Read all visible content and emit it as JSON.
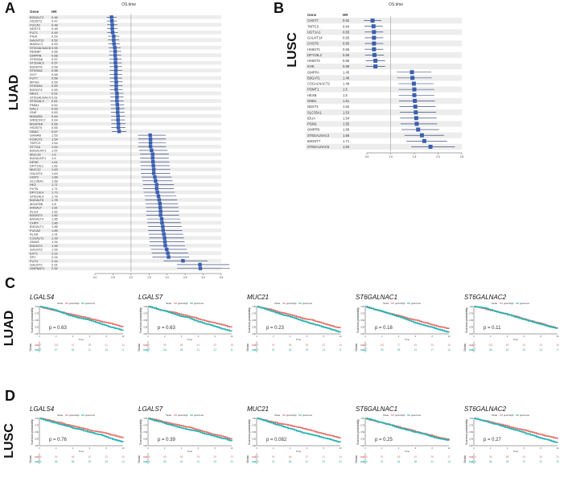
{
  "panels": {
    "A": {
      "letter": "A",
      "cohort": "LUAD"
    },
    "B": {
      "letter": "B",
      "cohort": "LUSC"
    },
    "C": {
      "letter": "C",
      "cohort": "LUAD"
    },
    "D": {
      "letter": "D",
      "cohort": "LUSC"
    }
  },
  "forest_common": {
    "title": "OS.time",
    "gene_header": "Gene",
    "hr_header": "HR"
  },
  "chart_data": [
    {
      "id": "forest-luad",
      "type": "forest",
      "title": "OS.time",
      "genes": [
        "B3GALT2",
        "HS3ST2",
        "FUCA1",
        "NDST3",
        "FUT1",
        "PIGK",
        "GALNT11",
        "MAN1C1",
        "ST6GALNAC6",
        "RENBP",
        "GMPPB",
        "ST8SIA6",
        "ST3GAL5",
        "B3GNT6",
        "ST6SIA1",
        "OGT",
        "FUT7",
        "MFNG",
        "ST8SIA1",
        "B3GNT4",
        "NEU1",
        "ST6GALNAC4",
        "ST3GAL3",
        "PMM1",
        "GAL1",
        "GNE",
        "MAN2B1",
        "WRSCR17",
        "MGAT4A",
        "HS3ST5",
        "GBA2",
        "GANAB",
        "FCRUT1",
        "TMTC3",
        "ST7GA",
        "B3GALNT1",
        "MUC16",
        "B4GALNT1",
        "HPSE",
        "DPY19L1",
        "MUC12",
        "GALNT4",
        "UGP2",
        "SLC35A1",
        "HK2",
        "FKTN",
        "DPY19L4",
        "ST6GAL4",
        "B4GALT6",
        "MGAT5B",
        "A4GALT",
        "ALG3",
        "B3GNT3",
        "B4GALT4",
        "CHPF",
        "B4GALT1",
        "FUCA2",
        "ALG6",
        "C1GALT1",
        "GMAS",
        "B3GNT3",
        "GALNT3",
        "EXT1",
        "SP1",
        "FUT4",
        "GALNT2",
        "GNPNAT1"
      ],
      "hr": [
        0.46,
        0.47,
        0.48,
        0.48,
        0.49,
        0.52,
        0.52,
        0.53,
        0.55,
        0.56,
        0.56,
        0.57,
        0.57,
        0.58,
        0.58,
        0.58,
        0.58,
        0.59,
        0.59,
        0.59,
        0.61,
        0.61,
        0.61,
        0.62,
        0.63,
        0.63,
        0.64,
        0.64,
        0.65,
        0.65,
        0.67,
        1.53,
        1.54,
        1.54,
        1.54,
        1.57,
        1.6,
        1.6,
        1.61,
        1.62,
        1.63,
        1.63,
        1.66,
        1.68,
        1.71,
        1.71,
        1.73,
        1.76,
        1.78,
        1.8,
        1.81,
        1.82,
        1.82,
        1.85,
        1.86,
        1.88,
        1.89,
        1.91,
        1.93,
        1.94,
        1.95,
        1.99,
        2.02,
        2.04,
        2.44,
        2.91,
        2.92
      ],
      "x_ticks": [
        "0.0",
        "0.5",
        "1.0",
        "1.5",
        "2.0",
        "2.5",
        "3.0",
        "3.5"
      ],
      "xlim": [
        0,
        3.5
      ],
      "ref_line": 1
    },
    {
      "id": "forest-lusc",
      "type": "forest",
      "title": "OS.time",
      "genes": [
        "CHST7",
        "TMTC3",
        "UGT1A1",
        "GALNT14",
        "CHST9",
        "HS6ST1",
        "DPY19L2",
        "HS6ST2",
        "KHK",
        "GMPPA",
        "B3GAT1",
        "CSGALNACT2",
        "POMT1",
        "HEXB",
        "GNB1",
        "NDST1",
        "SLC35A1",
        "IDUA",
        "PGM1",
        "GMPPB",
        "ST6GALNAC4",
        "B3GNT7",
        "ST6GALNAC5"
      ],
      "hr": [
        0.62,
        0.64,
        0.65,
        0.65,
        0.65,
        0.65,
        0.66,
        0.68,
        0.68,
        1.45,
        1.46,
        1.49,
        1.5,
        1.5,
        1.51,
        1.52,
        1.53,
        1.54,
        1.55,
        1.58,
        1.66,
        1.71,
        1.84
      ],
      "x_ticks": [
        "0.5",
        "1.0",
        "1.5",
        "2.0",
        "2.5"
      ],
      "xlim": [
        0.5,
        2.5
      ],
      "ref_line": 1
    },
    {
      "id": "km-luad",
      "type": "km-row",
      "ylabel": "Survival probability",
      "xlabel": "Time",
      "strata_label": "Strata",
      "legend": [
        "Strata",
        "gene=High",
        "gene=Low"
      ],
      "x_ticks": [
        "0",
        "2",
        "4",
        "6",
        "8",
        "10"
      ],
      "y_ticks": [
        "0.00",
        "0.25",
        "0.50",
        "0.75",
        "1.00"
      ],
      "plots": [
        {
          "gene": "LGALS4",
          "p": "p = 0.63",
          "risk_high": [
            "127",
            "102",
            "67",
            "39",
            "21",
            "14"
          ],
          "risk_low": [
            "127",
            "87",
            "64",
            "31",
            "18",
            "5"
          ]
        },
        {
          "gene": "LGALS7",
          "p": "p = 0.63",
          "risk_high": [
            "127",
            "99",
            "68",
            "42",
            "25",
            "18"
          ],
          "risk_low": [
            "127",
            "104",
            "58",
            "31",
            "22",
            "11"
          ]
        },
        {
          "gene": "MUC21",
          "p": "p = 0.23",
          "risk_high": [
            "127",
            "94",
            "66",
            "39",
            "22",
            "14"
          ],
          "risk_low": [
            "127",
            "91",
            "60",
            "29",
            "14",
            "8"
          ]
        },
        {
          "gene": "ST6GALNAC1",
          "p": "p = 0.18",
          "risk_high": [
            "127",
            "101",
            "77",
            "45",
            "25",
            "16"
          ],
          "risk_low": [
            "127",
            "95",
            "58",
            "31",
            "17",
            "10"
          ]
        },
        {
          "gene": "ST6GALNAC2",
          "p": "p = 0.11",
          "risk_high": [
            "127",
            "102",
            "69",
            "40",
            "23",
            "15"
          ],
          "risk_low": [
            "127",
            "88",
            "63",
            "30",
            "16",
            "9"
          ]
        }
      ]
    },
    {
      "id": "km-lusc",
      "type": "km-row",
      "ylabel": "Survival probability",
      "xlabel": "Time",
      "strata_label": "Strata",
      "legend": [
        "Strata",
        "gene=High",
        "gene=Low"
      ],
      "x_ticks": [
        "0",
        "2",
        "4",
        "6",
        "8",
        "10"
      ],
      "y_ticks": [
        "0.00",
        "0.25",
        "0.50",
        "0.75",
        "1.00"
      ],
      "plots": [
        {
          "gene": "LGALS4",
          "p": "p = 0.76",
          "risk_high": [
            "124",
            "94",
            "66",
            "40",
            "22",
            "19"
          ],
          "risk_low": [
            "124",
            "88",
            "68",
            "39",
            "28",
            "14"
          ]
        },
        {
          "gene": "LGALS7",
          "p": "p = 0.39",
          "risk_high": [
            "124",
            "89",
            "65",
            "39",
            "26",
            "23"
          ],
          "risk_low": [
            "124",
            "89",
            "60",
            "42",
            "25",
            "20"
          ]
        },
        {
          "gene": "MUC21",
          "p": "p = 0.082",
          "risk_high": [
            "124",
            "94",
            "66",
            "37",
            "21",
            "14"
          ],
          "risk_low": [
            "124",
            "92",
            "66",
            "42",
            "29",
            "24"
          ]
        },
        {
          "gene": "ST6GALNAC1",
          "p": "p = 0.25",
          "risk_high": [
            "124",
            "91",
            "69",
            "42",
            "26",
            "17"
          ],
          "risk_low": [
            "124",
            "91",
            "64",
            "38",
            "22",
            "18"
          ]
        },
        {
          "gene": "ST6GALNAC2",
          "p": "p = 0.27",
          "risk_high": [
            "124",
            "96",
            "68",
            "42",
            "30",
            "24"
          ],
          "risk_low": [
            "124",
            "86",
            "65",
            "37",
            "20",
            "20"
          ]
        }
      ]
    }
  ],
  "colors": {
    "forest_box": "#3a5fb0",
    "forest_line": "#1f2f6a",
    "km_high": "#e8736c",
    "km_low": "#27b3b3",
    "grid": "#e5e5e5",
    "band": "#ededed"
  }
}
